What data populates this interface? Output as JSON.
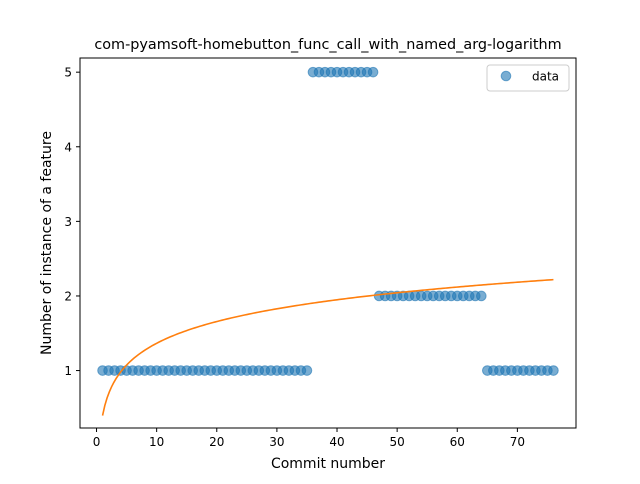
{
  "chart_data": {
    "type": "scatter",
    "title": "com-pyamsoft-homebutton_func_call_with_named_arg-logarithm",
    "xlabel": "Commit number",
    "ylabel": "Number of instance of a feature",
    "xlim": [
      -2.75,
      79.75
    ],
    "ylim": [
      0.23,
      5.19
    ],
    "xticks": [
      0,
      10,
      20,
      30,
      40,
      50,
      60,
      70
    ],
    "yticks": [
      1,
      2,
      3,
      4,
      5
    ],
    "grid": false,
    "legend_position": "top-right",
    "colors": {
      "data": "#1f77b4",
      "fit": "#ff7f0e"
    },
    "series": [
      {
        "name": "data",
        "kind": "scatter",
        "x": [
          1,
          2,
          3,
          4,
          5,
          6,
          7,
          8,
          9,
          10,
          11,
          12,
          13,
          14,
          15,
          16,
          17,
          18,
          19,
          20,
          21,
          22,
          23,
          24,
          25,
          26,
          27,
          28,
          29,
          30,
          31,
          32,
          33,
          34,
          35,
          36,
          37,
          38,
          39,
          40,
          41,
          42,
          43,
          44,
          45,
          46,
          47,
          48,
          49,
          50,
          51,
          52,
          53,
          54,
          55,
          56,
          57,
          58,
          59,
          60,
          61,
          62,
          63,
          64,
          65,
          66,
          67,
          68,
          69,
          70,
          71,
          72,
          73,
          74,
          75,
          76
        ],
        "y": [
          1,
          1,
          1,
          1,
          1,
          1,
          1,
          1,
          1,
          1,
          1,
          1,
          1,
          1,
          1,
          1,
          1,
          1,
          1,
          1,
          1,
          1,
          1,
          1,
          1,
          1,
          1,
          1,
          1,
          1,
          1,
          1,
          1,
          1,
          1,
          5,
          5,
          5,
          5,
          5,
          5,
          5,
          5,
          5,
          5,
          5,
          2,
          2,
          2,
          2,
          2,
          2,
          2,
          2,
          2,
          2,
          2,
          2,
          2,
          2,
          2,
          2,
          2,
          2,
          1,
          1,
          1,
          1,
          1,
          1,
          1,
          1,
          1,
          1,
          1,
          1
        ]
      },
      {
        "kind": "line",
        "model": "logarithmic",
        "a": 0.3966,
        "b": 0.4208,
        "x_range": [
          1,
          76
        ]
      }
    ]
  }
}
